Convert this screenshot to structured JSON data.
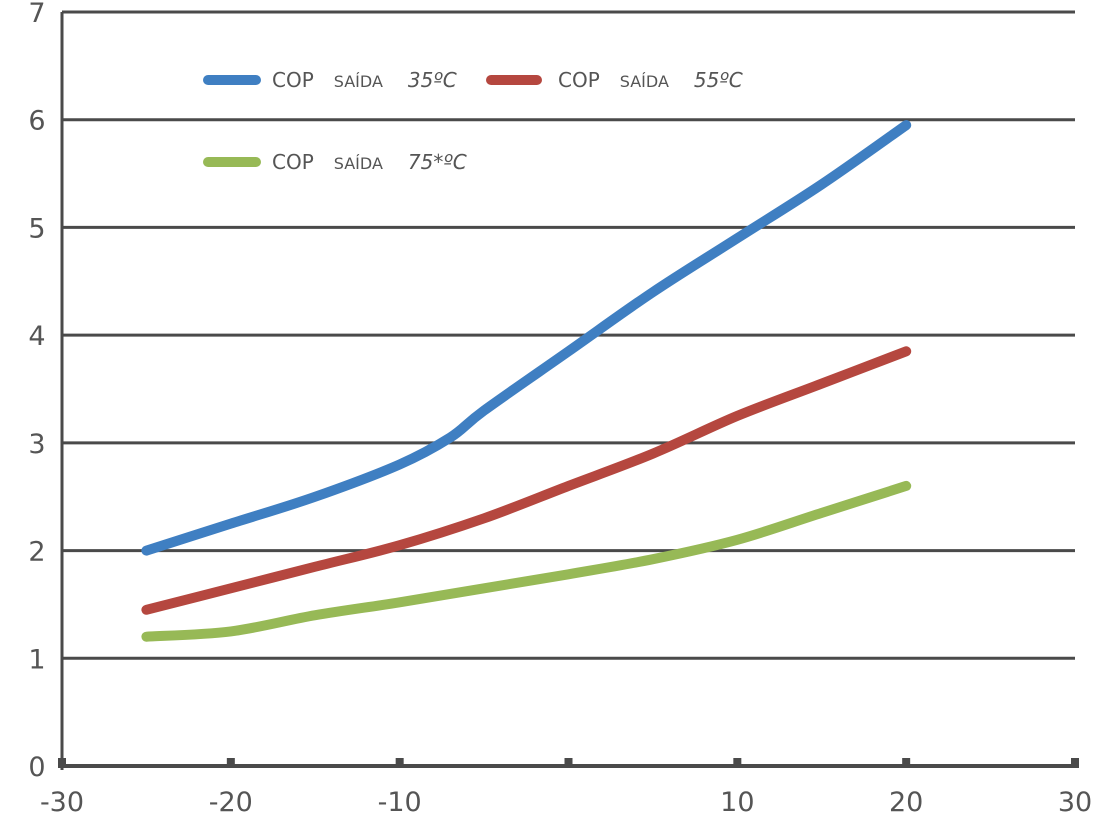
{
  "chart_data": {
    "type": "line",
    "title": "",
    "xlabel": "",
    "ylabel": "",
    "xlim": [
      -30,
      30
    ],
    "ylim": [
      0,
      7
    ],
    "x_ticks": [
      -30,
      -20,
      -10,
      0,
      10,
      20,
      30
    ],
    "x_tick_labels": [
      "-30",
      "-20",
      "-10",
      "",
      "10",
      "20",
      "30"
    ],
    "y_ticks": [
      0,
      1,
      2,
      3,
      4,
      5,
      6,
      7
    ],
    "y_tick_labels": [
      "0",
      "1",
      "2",
      "3",
      "4",
      "5",
      "6",
      "7"
    ],
    "grid": "horizontal",
    "legend_position": "top-left",
    "series": [
      {
        "name": "COP SAÍDA 35ºC",
        "label_parts": [
          "COP",
          "SAÍDA",
          "35ºC"
        ],
        "color": "#3f7fc2",
        "x": [
          -25,
          -20,
          -15,
          -10,
          -7,
          -5,
          0,
          5,
          10,
          15,
          20
        ],
        "y": [
          2.0,
          2.25,
          2.5,
          2.8,
          3.05,
          3.3,
          3.85,
          4.4,
          4.9,
          5.4,
          5.95
        ]
      },
      {
        "name": "COP SAÍDA 55ºC",
        "label_parts": [
          "COP",
          "SAÍDA",
          "55ºC"
        ],
        "color": "#b5473f",
        "x": [
          -25,
          -20,
          -15,
          -10,
          -5,
          0,
          5,
          10,
          15,
          20
        ],
        "y": [
          1.45,
          1.65,
          1.85,
          2.05,
          2.3,
          2.6,
          2.9,
          3.25,
          3.55,
          3.85
        ]
      },
      {
        "name": "COP SAÍDA 75*ºC",
        "label_parts": [
          "COP",
          "SAÍDA",
          "75*ºC"
        ],
        "color": "#97b956",
        "x": [
          -25,
          -20,
          -15,
          -10,
          -5,
          0,
          5,
          10,
          15,
          20
        ],
        "y": [
          1.2,
          1.25,
          1.4,
          1.52,
          1.65,
          1.78,
          1.92,
          2.1,
          2.35,
          2.6
        ]
      }
    ]
  }
}
